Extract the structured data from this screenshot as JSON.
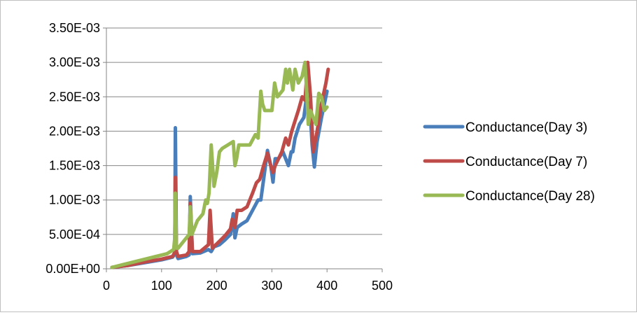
{
  "chart_data": {
    "type": "line",
    "title": "",
    "xlabel": "",
    "ylabel": "",
    "xlim": [
      0,
      500
    ],
    "ylim": [
      0,
      0.0035
    ],
    "x_ticks": [
      0,
      100,
      200,
      300,
      400,
      500
    ],
    "x_tick_labels": [
      "0",
      "100",
      "200",
      "300",
      "400",
      "500"
    ],
    "y_ticks": [
      0,
      0.0005,
      0.001,
      0.0015,
      0.002,
      0.0025,
      0.003,
      0.0035
    ],
    "y_tick_labels": [
      "0.00E+00",
      "5.00E-04",
      "1.00E-03",
      "1.50E-03",
      "2.00E-03",
      "2.50E-03",
      "3.00E-03",
      "3.50E-03"
    ],
    "grid": "horizontal",
    "legend_position": "right",
    "series": [
      {
        "name": "Conductance(Day 3)",
        "color": "#4a7ebb",
        "x": [
          10,
          40,
          70,
          100,
          120,
          124,
          125,
          127,
          130,
          145,
          150,
          152,
          156,
          170,
          185,
          190,
          195,
          205,
          215,
          225,
          230,
          233,
          237,
          245,
          255,
          265,
          275,
          280,
          285,
          292,
          298,
          302,
          306,
          312,
          320,
          330,
          335,
          338,
          342,
          350,
          358,
          362,
          366,
          370,
          373,
          377,
          382,
          390,
          400
        ],
        "y": [
          2e-05,
          5e-05,
          9e-05,
          0.00013,
          0.00017,
          0.00022,
          0.00205,
          0.0002,
          0.00015,
          0.00018,
          0.0002,
          0.00105,
          0.00022,
          0.00023,
          0.00028,
          0.00025,
          0.00032,
          0.00035,
          0.00042,
          0.0005,
          0.0008,
          0.00045,
          0.0006,
          0.00065,
          0.0007,
          0.00085,
          0.001,
          0.001,
          0.0013,
          0.00172,
          0.0015,
          0.00126,
          0.0016,
          0.0016,
          0.0017,
          0.0015,
          0.0017,
          0.0017,
          0.0019,
          0.0021,
          0.0022,
          0.00245,
          0.0024,
          0.0022,
          0.0018,
          0.00148,
          0.00185,
          0.0022,
          0.00258
        ]
      },
      {
        "name": "Conductance(Day 7)",
        "color": "#be4b48",
        "x": [
          10,
          40,
          70,
          100,
          120,
          124,
          125,
          127,
          130,
          145,
          150,
          152,
          156,
          170,
          185,
          188,
          192,
          205,
          215,
          225,
          228,
          233,
          237,
          245,
          255,
          265,
          272,
          278,
          285,
          292,
          298,
          302,
          306,
          312,
          318,
          325,
          330,
          336,
          340,
          348,
          355,
          360,
          365,
          370,
          375,
          382,
          390,
          398,
          402
        ],
        "y": [
          2e-05,
          5e-05,
          0.0001,
          0.00014,
          0.00018,
          0.00024,
          0.00133,
          0.00025,
          0.00018,
          0.0002,
          0.00025,
          0.00095,
          0.00025,
          0.00025,
          0.00035,
          0.00085,
          0.0003,
          0.0004,
          0.00048,
          0.00058,
          0.00072,
          0.0006,
          0.00085,
          0.00085,
          0.0009,
          0.0011,
          0.00125,
          0.0013,
          0.0015,
          0.00168,
          0.0015,
          0.0014,
          0.0015,
          0.0016,
          0.0017,
          0.0019,
          0.0018,
          0.002,
          0.0021,
          0.0023,
          0.0025,
          0.00245,
          0.003,
          0.0025,
          0.0017,
          0.002,
          0.0024,
          0.0027,
          0.0029
        ]
      },
      {
        "name": "Conductance(Day 28)",
        "color": "#98b954",
        "x": [
          10,
          30,
          60,
          90,
          110,
          122,
          124,
          125,
          127,
          130,
          140,
          150,
          152,
          155,
          165,
          175,
          180,
          183,
          186,
          190,
          195,
          200,
          205,
          210,
          220,
          230,
          233,
          236,
          240,
          250,
          260,
          270,
          275,
          280,
          283,
          287,
          292,
          300,
          305,
          310,
          320,
          325,
          328,
          332,
          338,
          342,
          348,
          355,
          360,
          363,
          366,
          370,
          375,
          380,
          385,
          390,
          395,
          400
        ],
        "y": [
          2e-05,
          6e-05,
          0.00012,
          0.00018,
          0.00022,
          0.00028,
          0.00045,
          0.0011,
          0.0003,
          0.0003,
          0.0004,
          0.0005,
          0.0009,
          0.0005,
          0.0007,
          0.0008,
          0.001,
          0.00095,
          0.0011,
          0.0018,
          0.0012,
          0.0014,
          0.0017,
          0.00175,
          0.0018,
          0.00185,
          0.0015,
          0.0016,
          0.0018,
          0.0018,
          0.0018,
          0.00195,
          0.0019,
          0.00258,
          0.0024,
          0.0023,
          0.0023,
          0.0023,
          0.0027,
          0.0025,
          0.0026,
          0.0029,
          0.0027,
          0.0029,
          0.0026,
          0.0029,
          0.0027,
          0.0028,
          0.003,
          0.0026,
          0.0021,
          0.0023,
          0.0022,
          0.0021,
          0.00255,
          0.0025,
          0.0023,
          0.00235
        ]
      }
    ]
  }
}
